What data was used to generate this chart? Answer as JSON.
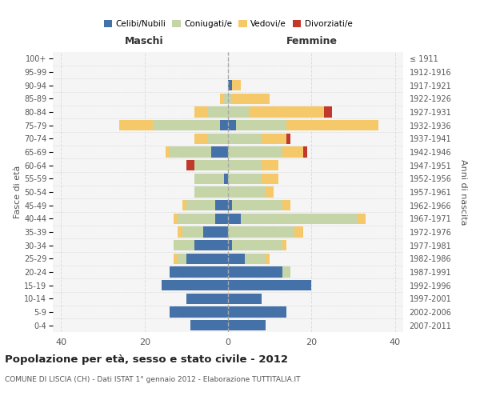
{
  "age_groups": [
    "0-4",
    "5-9",
    "10-14",
    "15-19",
    "20-24",
    "25-29",
    "30-34",
    "35-39",
    "40-44",
    "45-49",
    "50-54",
    "55-59",
    "60-64",
    "65-69",
    "70-74",
    "75-79",
    "80-84",
    "85-89",
    "90-94",
    "95-99",
    "100+"
  ],
  "birth_years": [
    "2007-2011",
    "2002-2006",
    "1997-2001",
    "1992-1996",
    "1987-1991",
    "1982-1986",
    "1977-1981",
    "1972-1976",
    "1967-1971",
    "1962-1966",
    "1957-1961",
    "1952-1956",
    "1947-1951",
    "1942-1946",
    "1937-1941",
    "1932-1936",
    "1927-1931",
    "1922-1926",
    "1917-1921",
    "1912-1916",
    "≤ 1911"
  ],
  "maschi": {
    "celibi": [
      9,
      14,
      10,
      16,
      14,
      10,
      8,
      6,
      3,
      3,
      0,
      1,
      0,
      4,
      0,
      2,
      0,
      0,
      0,
      0,
      0
    ],
    "coniugati": [
      0,
      0,
      0,
      0,
      0,
      2,
      5,
      5,
      9,
      7,
      8,
      7,
      8,
      10,
      5,
      16,
      5,
      1,
      0,
      0,
      0
    ],
    "vedovi": [
      0,
      0,
      0,
      0,
      0,
      1,
      0,
      1,
      1,
      1,
      0,
      0,
      0,
      1,
      3,
      8,
      3,
      1,
      0,
      0,
      0
    ],
    "divorziati": [
      0,
      0,
      0,
      0,
      0,
      0,
      0,
      0,
      0,
      0,
      0,
      0,
      2,
      0,
      0,
      0,
      0,
      0,
      0,
      0,
      0
    ]
  },
  "femmine": {
    "nubili": [
      9,
      14,
      8,
      20,
      13,
      4,
      1,
      0,
      3,
      1,
      0,
      0,
      0,
      0,
      0,
      2,
      0,
      0,
      1,
      0,
      0
    ],
    "coniugate": [
      0,
      0,
      0,
      0,
      2,
      5,
      12,
      16,
      28,
      12,
      9,
      8,
      8,
      13,
      8,
      12,
      5,
      1,
      0,
      0,
      0
    ],
    "vedove": [
      0,
      0,
      0,
      0,
      0,
      1,
      1,
      2,
      2,
      2,
      2,
      4,
      4,
      5,
      6,
      22,
      18,
      9,
      2,
      0,
      0
    ],
    "divorziate": [
      0,
      0,
      0,
      0,
      0,
      0,
      0,
      0,
      0,
      0,
      0,
      0,
      0,
      1,
      1,
      0,
      2,
      0,
      0,
      0,
      0
    ]
  },
  "colors": {
    "celibi_nubili": "#4472a8",
    "coniugati": "#c5d5a8",
    "vedovi": "#f5c96a",
    "divorziati": "#c0392b"
  },
  "title": "Popolazione per età, sesso e stato civile - 2012",
  "subtitle": "COMUNE DI LISCIA (CH) - Dati ISTAT 1° gennaio 2012 - Elaborazione TUTTITALIA.IT",
  "xlabel_left": "Maschi",
  "xlabel_right": "Femmine",
  "ylabel_left": "Fasce di età",
  "ylabel_right": "Anni di nascita",
  "xlim": 42,
  "background_color": "#ffffff",
  "grid_color": "#dddddd"
}
